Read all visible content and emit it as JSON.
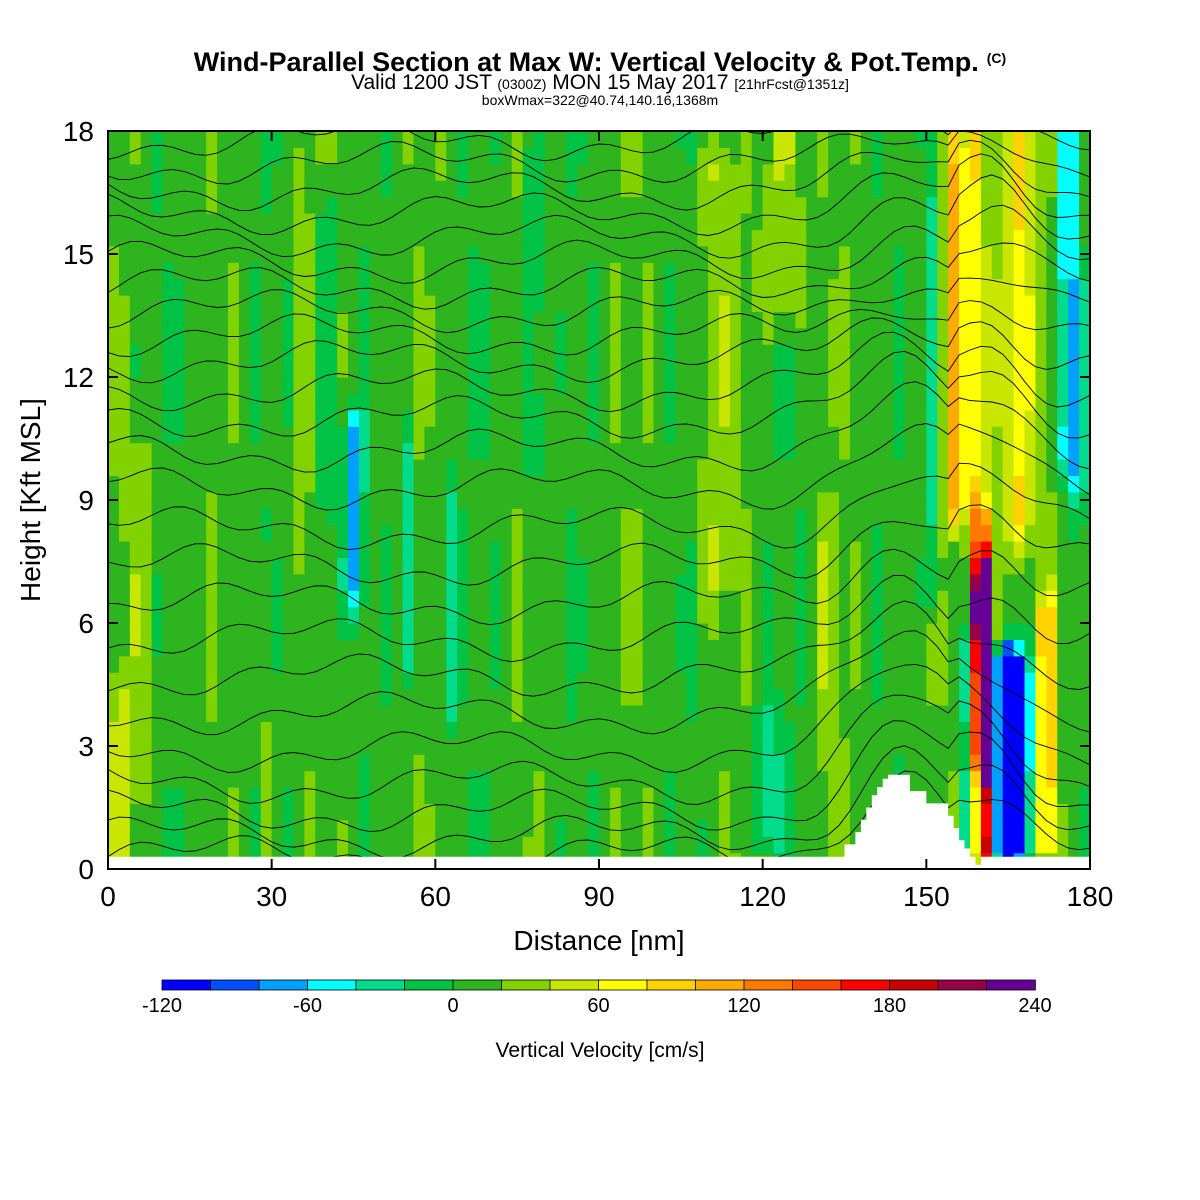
{
  "title": {
    "main": "Wind-Parallel Section at Max W: Vertical Velocity & Pot.Temp.",
    "copyright": "(C)",
    "valid_prefix": "Valid 1200 JST",
    "valid_z": "(0300Z)",
    "valid_day": "MON 15 May 2017",
    "valid_fcst": "[21hrFcst@1351z]",
    "box": "boxWmax=322@40.74,140.16,1368m"
  },
  "chart_data": {
    "type": "heatmap",
    "xlabel": "Distance [nm]",
    "ylabel": "Height [Kft MSL]",
    "xlim": [
      0,
      180
    ],
    "ylim": [
      0,
      18
    ],
    "xticks": [
      0,
      30,
      60,
      90,
      120,
      150,
      180
    ],
    "yticks": [
      0,
      3,
      6,
      9,
      12,
      15,
      18
    ],
    "colorbar": {
      "label": "Vertical Velocity [cm/s]",
      "tick_values": [
        -120,
        -60,
        0,
        60,
        120,
        180,
        240
      ],
      "tick_labels": [
        "-120",
        "-60",
        "0",
        "60",
        "120",
        "180",
        "240"
      ],
      "levels": [
        -120,
        -100,
        -80,
        -60,
        -40,
        -20,
        0,
        20,
        40,
        60,
        80,
        100,
        120,
        140,
        160,
        180,
        200,
        220,
        240
      ],
      "colors": [
        "#0000ff",
        "#0050ff",
        "#00a0ff",
        "#00ffff",
        "#00dc8c",
        "#00c346",
        "#2db41e",
        "#82d200",
        "#c8e600",
        "#ffff00",
        "#ffd200",
        "#ffaa00",
        "#ff7800",
        "#ff4600",
        "#ff0000",
        "#c80000",
        "#960046",
        "#640096"
      ]
    },
    "background_w": 10,
    "features": [
      {
        "x": 160.5,
        "w": 1.8,
        "y0": 0.5,
        "y1": 6.2,
        "value": 230
      },
      {
        "x": 160.5,
        "w": 1.6,
        "y0": 3.0,
        "y1": 7.0,
        "value": 190
      },
      {
        "x": 160.0,
        "w": 1.5,
        "y0": 6.5,
        "y1": 8.2,
        "value": 140
      },
      {
        "x": 165.0,
        "w": 3.0,
        "y0": 0.8,
        "y1": 4.8,
        "value": -120
      },
      {
        "x": 166.0,
        "w": 3.5,
        "y0": 1.0,
        "y1": 4.5,
        "value": -70
      },
      {
        "x": 158.0,
        "w": 1.5,
        "y0": 0.5,
        "y1": 5.5,
        "value": -50
      },
      {
        "x": 155.0,
        "w": 1.6,
        "y0": 9.0,
        "y1": 17.5,
        "value": 100
      },
      {
        "x": 158.5,
        "w": 1.8,
        "y0": 9.0,
        "y1": 18.0,
        "value": 70
      },
      {
        "x": 162.0,
        "w": 3.0,
        "y0": 8.0,
        "y1": 18.0,
        "value": 40
      },
      {
        "x": 167.0,
        "w": 2.5,
        "y0": 8.5,
        "y1": 18.0,
        "value": 80
      },
      {
        "x": 176.0,
        "w": 1.5,
        "y0": 10.0,
        "y1": 18.0,
        "value": -80
      },
      {
        "x": 178.0,
        "w": 1.2,
        "y0": 9.0,
        "y1": 14.0,
        "value": -40
      },
      {
        "x": 172.0,
        "w": 1.5,
        "y0": 1.0,
        "y1": 6.0,
        "value": 120
      },
      {
        "x": 151.0,
        "w": 1.3,
        "y0": 7.0,
        "y1": 18.0,
        "value": -30
      },
      {
        "x": 124.0,
        "w": 4.0,
        "y0": 14.0,
        "y1": 18.0,
        "value": 45
      },
      {
        "x": 45.0,
        "w": 1.8,
        "y0": 7.0,
        "y1": 10.5,
        "value": -70
      },
      {
        "x": 62.5,
        "w": 1.2,
        "y0": 4.0,
        "y1": 9.0,
        "value": -30
      },
      {
        "x": 55.0,
        "w": 1.0,
        "y0": 5.0,
        "y1": 10.0,
        "value": -40
      },
      {
        "x": 35.5,
        "w": 1.2,
        "y0": 8.0,
        "y1": 17.0,
        "value": 30
      },
      {
        "x": 40.0,
        "w": 1.2,
        "y0": 4.0,
        "y1": 16.0,
        "value": -30
      },
      {
        "x": 78.0,
        "w": 1.5,
        "y0": 10.0,
        "y1": 17.0,
        "value": -30
      },
      {
        "x": 111.0,
        "w": 3.0,
        "y0": 7.0,
        "y1": 17.0,
        "value": 35
      },
      {
        "x": 6.0,
        "w": 3.0,
        "y0": 2.0,
        "y1": 10.0,
        "value": 30
      },
      {
        "x": 2.0,
        "w": 2.0,
        "y0": 0.2,
        "y1": 4.0,
        "value": 40
      },
      {
        "x": 29.0,
        "w": 1.0,
        "y0": 0.5,
        "y1": 7.0,
        "value": 30
      },
      {
        "x": 121.0,
        "w": 2.5,
        "y0": 1.0,
        "y1": 3.5,
        "value": -30
      },
      {
        "x": 132.0,
        "w": 2.0,
        "y0": 3.0,
        "y1": 8.0,
        "value": 35
      }
    ],
    "terrain_profile": {
      "x": [
        0,
        135,
        135,
        137,
        137,
        138,
        138,
        139,
        139,
        140,
        140,
        141,
        141,
        142,
        142,
        143,
        143,
        147,
        147,
        150,
        150,
        154,
        154,
        155,
        155,
        156,
        156,
        157,
        157,
        158,
        158,
        159,
        159,
        160,
        160,
        180
      ],
      "y": [
        0.3,
        0.3,
        0.6,
        0.6,
        0.9,
        0.9,
        1.2,
        1.2,
        1.5,
        1.5,
        1.8,
        1.8,
        2.0,
        2.0,
        2.2,
        2.2,
        2.3,
        2.3,
        1.9,
        1.9,
        1.6,
        1.6,
        1.3,
        1.3,
        1.0,
        1.0,
        0.7,
        0.7,
        0.5,
        0.5,
        0.3,
        0.3,
        0.1,
        0.1,
        0.3,
        0.3
      ]
    },
    "isentrope_levels_kft": [
      0.3,
      0.8,
      1.4,
      2.1,
      2.9,
      3.8,
      4.7,
      5.6,
      6.5,
      7.4,
      8.3,
      9.3,
      10.2,
      11.0,
      11.7,
      12.4,
      13.0,
      13.6,
      14.2,
      14.8,
      15.4,
      16.0,
      16.6,
      17.2,
      17.8
    ]
  }
}
